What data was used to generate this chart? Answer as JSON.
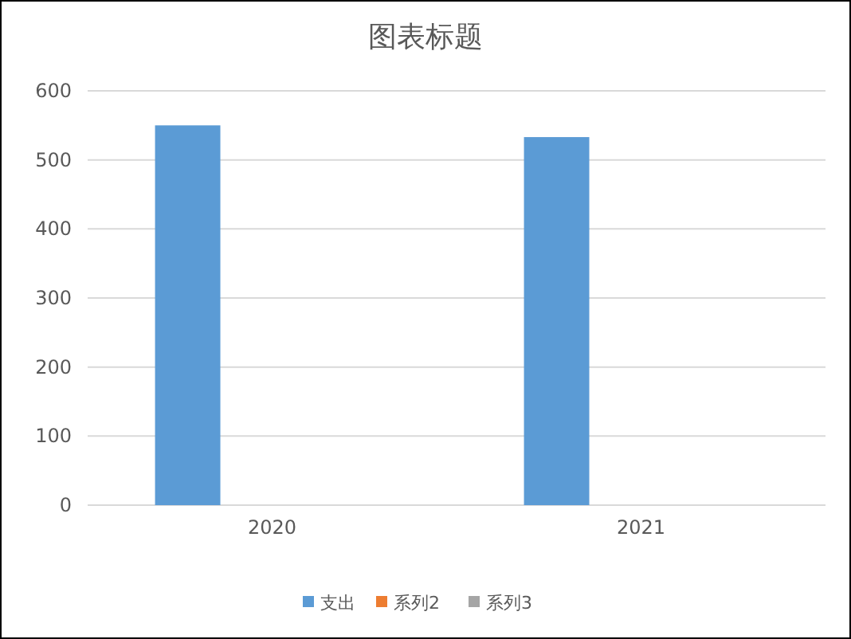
{
  "chart_data": {
    "type": "bar",
    "title": "图表标题",
    "categories": [
      "2020",
      "2021"
    ],
    "series": [
      {
        "name": "支出",
        "color": "#5b9bd5",
        "values": [
          550,
          533
        ]
      },
      {
        "name": "系列2",
        "color": "#ed7d31",
        "values": [
          null,
          null
        ]
      },
      {
        "name": "系列3",
        "color": "#a5a5a5",
        "values": [
          null,
          null
        ]
      }
    ],
    "ylim": [
      0,
      600
    ],
    "yticks": [
      0,
      100,
      200,
      300,
      400,
      500,
      600
    ],
    "grid": "y",
    "legend": "bottom"
  }
}
